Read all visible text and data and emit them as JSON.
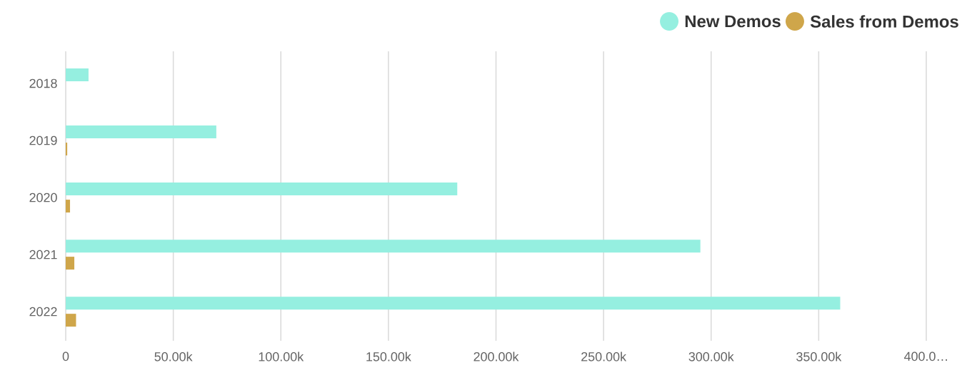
{
  "chart_data": {
    "type": "bar",
    "orientation": "horizontal",
    "categories": [
      "2018",
      "2019",
      "2020",
      "2021",
      "2022"
    ],
    "series": [
      {
        "name": "New Demos",
        "color": "#95efe0",
        "values": [
          10600,
          70000,
          182000,
          295000,
          360000
        ]
      },
      {
        "name": "Sales from Demos",
        "color": "#cfa64a",
        "values": [
          null,
          700,
          2000,
          4000,
          4800
        ]
      }
    ],
    "xlim": [
      0,
      400000
    ],
    "xticks": [
      0,
      {
        "value": 50000,
        "label": "50.00k"
      },
      {
        "value": 100000,
        "label": "100.00k"
      },
      {
        "value": 150000,
        "label": "150.00k"
      },
      {
        "value": 200000,
        "label": "200.00k"
      },
      {
        "value": 250000,
        "label": "250.00k"
      },
      {
        "value": 300000,
        "label": "300.00k"
      },
      {
        "value": 350000,
        "label": "350.00k"
      },
      {
        "value": 400000,
        "label": "400.0…"
      }
    ],
    "grid": "x",
    "legend": "top right"
  }
}
